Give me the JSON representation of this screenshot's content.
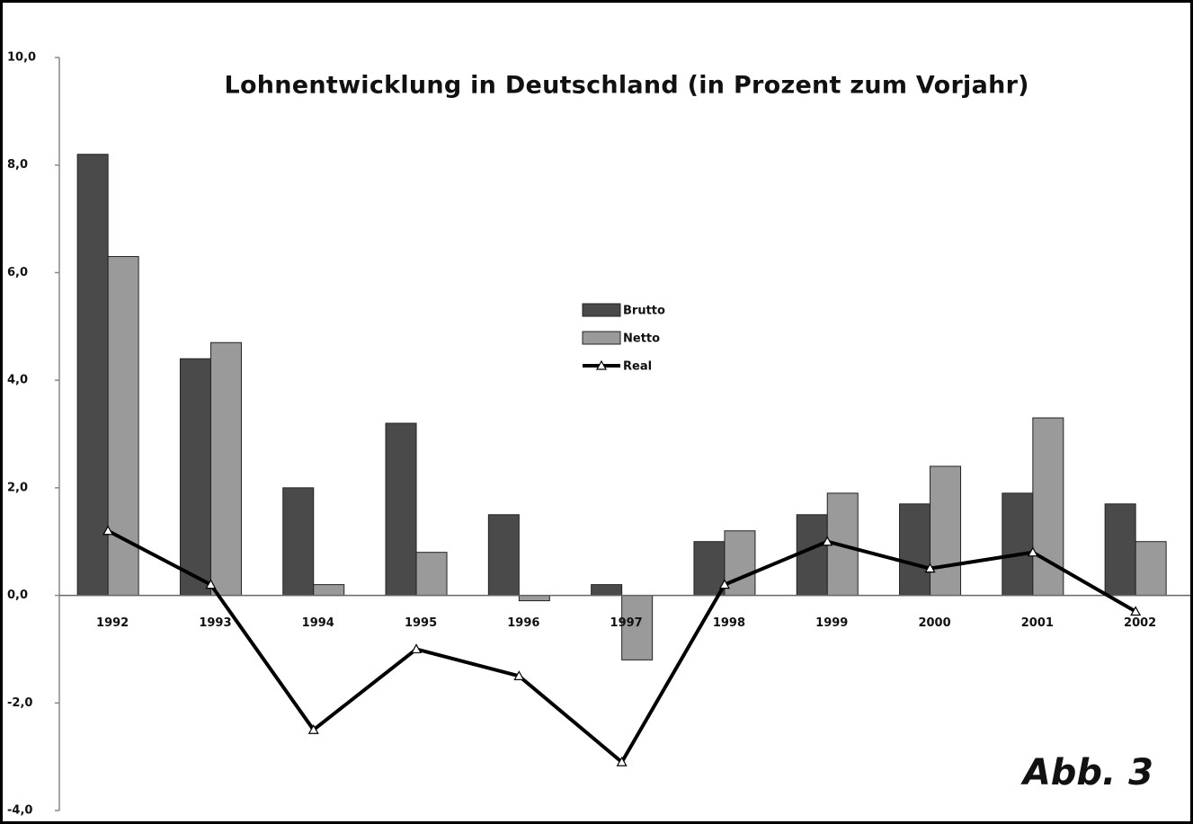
{
  "chart_data": {
    "type": "bar",
    "title": "Lohnentwicklung in Deutschland (in Prozent zum Vorjahr)",
    "annotation": "Abb. 3",
    "categories": [
      "1992",
      "1993",
      "1994",
      "1995",
      "1996",
      "1997",
      "1998",
      "1999",
      "2000",
      "2001",
      "2002"
    ],
    "series": [
      {
        "name": "Brutto",
        "type": "bar",
        "color": "#4a4a4a",
        "values": [
          8.2,
          4.4,
          2.0,
          3.2,
          1.5,
          0.2,
          1.0,
          1.5,
          1.7,
          1.9,
          1.7
        ]
      },
      {
        "name": "Netto",
        "type": "bar",
        "color": "#9a9a9a",
        "values": [
          6.3,
          4.7,
          0.2,
          0.8,
          -0.1,
          -1.2,
          1.2,
          1.9,
          2.4,
          3.3,
          1.0
        ]
      },
      {
        "name": "Real",
        "type": "line",
        "color": "#000000",
        "values": [
          1.2,
          0.2,
          -2.5,
          -1.0,
          -1.5,
          -3.1,
          0.2,
          1.0,
          0.5,
          0.8,
          -0.3
        ]
      }
    ],
    "ylim": [
      -4,
      10
    ],
    "yticks": [
      {
        "value": -4,
        "label": "-4,0"
      },
      {
        "value": -2,
        "label": "-2,0"
      },
      {
        "value": 0,
        "label": "0,0"
      },
      {
        "value": 2,
        "label": "2,0"
      },
      {
        "value": 4,
        "label": "4,0"
      },
      {
        "value": 6,
        "label": "6,0"
      },
      {
        "value": 8,
        "label": "8,0"
      },
      {
        "value": 10,
        "label": "10,0"
      }
    ],
    "grid": false,
    "legend": "center"
  }
}
